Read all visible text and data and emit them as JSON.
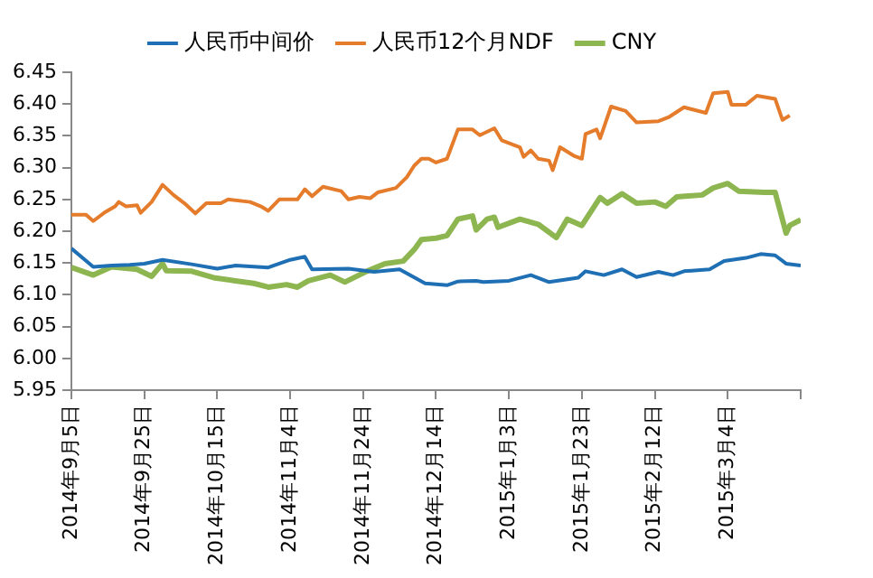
{
  "chart_data": {
    "type": "line",
    "legend": "top",
    "grid": false,
    "marker": "none",
    "line_style": "solid",
    "xlim": [
      "2014-09-05",
      "2015-03-24"
    ],
    "xticks": [
      {
        "value": "2014-09-05",
        "label": "2014年9月5日"
      },
      {
        "value": "2014-09-25",
        "label": "2014年9月25日"
      },
      {
        "value": "2014-10-15",
        "label": "2014年10月15日"
      },
      {
        "value": "2014-11-04",
        "label": "2014年11月4日"
      },
      {
        "value": "2014-11-24",
        "label": "2014年11月24日"
      },
      {
        "value": "2014-12-14",
        "label": "2014年12月14日"
      },
      {
        "value": "2015-01-03",
        "label": "2015年1月3日"
      },
      {
        "value": "2015-01-23",
        "label": "2015年1月23日"
      },
      {
        "value": "2015-02-12",
        "label": "2015年2月12日"
      },
      {
        "value": "2015-03-04",
        "label": "2015年3月4日"
      },
      {
        "value": "2015-03-24",
        "label": null
      }
    ],
    "ylim": [
      5.95,
      6.45
    ],
    "yticks": [
      {
        "value": 5.95,
        "label": "5.95"
      },
      {
        "value": 6,
        "label": "6.00"
      },
      {
        "value": 6.05,
        "label": "6.05"
      },
      {
        "value": 6.1,
        "label": "6.10"
      },
      {
        "value": 6.15,
        "label": "6.15"
      },
      {
        "value": 6.2,
        "label": "6.20"
      },
      {
        "value": 6.25,
        "label": "6.25"
      },
      {
        "value": 6.3,
        "label": "6.30"
      },
      {
        "value": 6.35,
        "label": "6.35"
      },
      {
        "value": 6.4,
        "label": "6.40"
      },
      {
        "value": 6.45,
        "label": "6.45"
      }
    ],
    "series": [
      {
        "name": "人民币中间价",
        "color": "#1f6fb4",
        "x": [
          "2014-09-05",
          "2014-09-11",
          "2014-09-16",
          "2014-09-21",
          "2014-09-25",
          "2014-09-30",
          "2014-10-08",
          "2014-10-15",
          "2014-10-20",
          "2014-10-29",
          "2014-11-04",
          "2014-11-08",
          "2014-11-10",
          "2014-11-20",
          "2014-11-27",
          "2014-12-04",
          "2014-12-11",
          "2014-12-17",
          "2014-12-20",
          "2014-12-25",
          "2014-12-27",
          "2015-01-03",
          "2015-01-09",
          "2015-01-14",
          "2015-01-22",
          "2015-01-24",
          "2015-01-29",
          "2015-02-03",
          "2015-02-07",
          "2015-02-13",
          "2015-02-17",
          "2015-02-20",
          "2015-02-27",
          "2015-03-03",
          "2015-03-09",
          "2015-03-13",
          "2015-03-17",
          "2015-03-20",
          "2015-03-24"
        ],
        "values": [
          6.173,
          6.144,
          6.146,
          6.147,
          6.149,
          6.155,
          6.148,
          6.141,
          6.146,
          6.143,
          6.155,
          6.16,
          6.14,
          6.141,
          6.136,
          6.14,
          6.118,
          6.115,
          6.121,
          6.122,
          6.12,
          6.122,
          6.131,
          6.12,
          6.127,
          6.137,
          6.131,
          6.14,
          6.128,
          6.136,
          6.131,
          6.137,
          6.14,
          6.153,
          6.158,
          6.164,
          6.162,
          6.149,
          6.146
        ]
      },
      {
        "name": "人民币12个月NDF",
        "color": "#e57c2b",
        "x": [
          "2014-09-05",
          "2014-09-09",
          "2014-09-11",
          "2014-09-14",
          "2014-09-17",
          "2014-09-18",
          "2014-09-20",
          "2014-09-23",
          "2014-09-24",
          "2014-09-27",
          "2014-09-30",
          "2014-10-03",
          "2014-10-06",
          "2014-10-09",
          "2014-10-12",
          "2014-10-16",
          "2014-10-18",
          "2014-10-24",
          "2014-10-27",
          "2014-10-29",
          "2014-11-01",
          "2014-11-06",
          "2014-11-08",
          "2014-11-10",
          "2014-11-13",
          "2014-11-18",
          "2014-11-20",
          "2014-11-23",
          "2014-11-26",
          "2014-11-28",
          "2014-12-03",
          "2014-12-06",
          "2014-12-08",
          "2014-12-10",
          "2014-12-12",
          "2014-12-14",
          "2014-12-17",
          "2014-12-20",
          "2014-12-24",
          "2014-12-26",
          "2014-12-30",
          "2015-01-01",
          "2015-01-06",
          "2015-01-07",
          "2015-01-09",
          "2015-01-11",
          "2015-01-14",
          "2015-01-15",
          "2015-01-17",
          "2015-01-21",
          "2015-01-23",
          "2015-01-24",
          "2015-01-27",
          "2015-01-28",
          "2015-01-31",
          "2015-02-04",
          "2015-02-07",
          "2015-02-13",
          "2015-02-16",
          "2015-02-20",
          "2015-02-26",
          "2015-02-28",
          "2015-03-04",
          "2015-03-05",
          "2015-03-09",
          "2015-03-12",
          "2015-03-17",
          "2015-03-19",
          "2015-03-21"
        ],
        "values": [
          6.226,
          6.226,
          6.216,
          6.229,
          6.239,
          6.246,
          6.239,
          6.241,
          6.229,
          6.246,
          6.273,
          6.257,
          6.244,
          6.228,
          6.244,
          6.244,
          6.25,
          6.246,
          6.239,
          6.232,
          6.25,
          6.25,
          6.266,
          6.255,
          6.27,
          6.263,
          6.25,
          6.254,
          6.252,
          6.261,
          6.268,
          6.285,
          6.303,
          6.314,
          6.314,
          6.308,
          6.314,
          6.36,
          6.36,
          6.351,
          6.362,
          6.343,
          6.332,
          6.317,
          6.327,
          6.314,
          6.311,
          6.296,
          6.332,
          6.318,
          6.314,
          6.353,
          6.36,
          6.346,
          6.396,
          6.389,
          6.371,
          6.373,
          6.38,
          6.395,
          6.386,
          6.417,
          6.419,
          6.399,
          6.399,
          6.413,
          6.408,
          6.375,
          6.382
        ]
      },
      {
        "name": "CNY",
        "color": "#8db550",
        "x": [
          "2014-09-05",
          "2014-09-11",
          "2014-09-16",
          "2014-09-23",
          "2014-09-27",
          "2014-09-30",
          "2014-10-01",
          "2014-10-08",
          "2014-10-14",
          "2014-10-20",
          "2014-10-25",
          "2014-10-29",
          "2014-11-03",
          "2014-11-06",
          "2014-11-09",
          "2014-11-15",
          "2014-11-19",
          "2014-11-25",
          "2014-11-30",
          "2014-12-05",
          "2014-12-08",
          "2014-12-10",
          "2014-12-14",
          "2014-12-17",
          "2014-12-20",
          "2014-12-24",
          "2014-12-25",
          "2014-12-28",
          "2014-12-30",
          "2014-12-31",
          "2015-01-06",
          "2015-01-11",
          "2015-01-16",
          "2015-01-19",
          "2015-01-23",
          "2015-01-28",
          "2015-01-30",
          "2015-02-03",
          "2015-02-07",
          "2015-02-12",
          "2015-02-15",
          "2015-02-18",
          "2015-02-25",
          "2015-02-28",
          "2015-03-04",
          "2015-03-07",
          "2015-03-14",
          "2015-03-17",
          "2015-03-20",
          "2015-03-21",
          "2015-03-24"
        ],
        "values": [
          6.143,
          6.131,
          6.144,
          6.14,
          6.129,
          6.149,
          6.138,
          6.137,
          6.127,
          6.122,
          6.118,
          6.112,
          6.116,
          6.112,
          6.122,
          6.131,
          6.12,
          6.137,
          6.149,
          6.153,
          6.171,
          6.187,
          6.189,
          6.193,
          6.219,
          6.224,
          6.202,
          6.219,
          6.222,
          6.206,
          6.219,
          6.211,
          6.19,
          6.219,
          6.209,
          6.253,
          6.244,
          6.259,
          6.244,
          6.246,
          6.239,
          6.254,
          6.257,
          6.268,
          6.275,
          6.263,
          6.261,
          6.261,
          6.197,
          6.209,
          6.218
        ]
      }
    ]
  }
}
